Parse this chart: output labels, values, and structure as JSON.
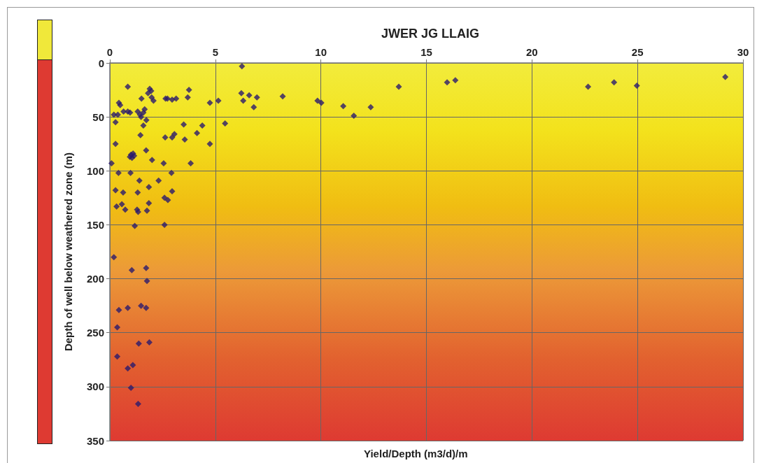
{
  "chart_data": {
    "type": "scatter",
    "title": "JWER JG LLAIG",
    "xlabel": "Yield/Depth (m3/d)/m",
    "ylabel": "Depth of well below weathered zone (m)",
    "xlim": [
      0,
      30
    ],
    "xticks": [
      0,
      5,
      10,
      15,
      20,
      25,
      30
    ],
    "ylim": [
      350,
      0
    ],
    "yticks": [
      0,
      50,
      100,
      150,
      200,
      250,
      300,
      350
    ],
    "grid": true,
    "marker": "diamond",
    "series": [
      {
        "color": "#2a1a6e",
        "x": [
          0.85,
          1.89,
          1.96,
          1.81,
          1.98,
          2.07,
          1.5,
          2.64,
          2.73,
          2.95,
          3.14,
          3.75,
          3.69,
          4.74,
          5.14,
          0.43,
          0.49,
          0.19,
          0.38,
          0.65,
          0.85,
          0.96,
          1.32,
          1.43,
          1.65,
          1.59,
          1.48,
          1.73,
          0.27,
          1.59,
          3.5,
          4.38,
          5.46,
          1.45,
          2.62,
          2.95,
          3.06,
          3.55,
          4.13,
          4.74,
          0.27,
          1.72,
          1.0,
          1.1,
          1.05,
          1.15,
          0.95,
          2.0,
          2.55,
          3.83,
          0.08,
          0.41,
          0.98,
          2.92,
          1.4,
          2.31,
          0.27,
          0.63,
          1.32,
          1.85,
          2.95,
          0.32,
          0.57,
          0.73,
          1.29,
          1.34,
          1.85,
          1.76,
          2.59,
          2.75,
          1.18,
          2.59,
          0.19,
          1.04,
          1.72,
          1.76,
          0.43,
          0.85,
          1.48,
          1.72,
          0.35,
          1.37,
          1.87,
          0.35,
          0.85,
          1.09,
          1.0,
          1.34,
          6.26,
          6.23,
          6.32,
          6.6,
          6.97,
          6.82,
          8.19,
          9.84,
          10.02,
          11.06,
          11.56,
          12.36,
          13.69,
          15.98,
          16.37,
          22.66,
          23.89,
          24.97,
          29.16
        ],
        "values": [
          22,
          24,
          26,
          28,
          32,
          35,
          33,
          33,
          33,
          34,
          33,
          25,
          32,
          37,
          35,
          37,
          39,
          48,
          48,
          45,
          45,
          46,
          45,
          48,
          43,
          46,
          50,
          53,
          55,
          58,
          57,
          58,
          56,
          67,
          69,
          69,
          66,
          71,
          65,
          75,
          75,
          81,
          85,
          84,
          88,
          86,
          87,
          90,
          93,
          93,
          93,
          102,
          102,
          102,
          109,
          109,
          118,
          120,
          120,
          115,
          119,
          133,
          131,
          136,
          136,
          138,
          130,
          137,
          125,
          127,
          151,
          150,
          180,
          192,
          190,
          202,
          229,
          227,
          225,
          227,
          245,
          260,
          259,
          272,
          283,
          280,
          301,
          316,
          3,
          28,
          35,
          30,
          32,
          41,
          31,
          35,
          37,
          40,
          49,
          41,
          22,
          18,
          16,
          22,
          18,
          21,
          13
        ]
      }
    ]
  }
}
